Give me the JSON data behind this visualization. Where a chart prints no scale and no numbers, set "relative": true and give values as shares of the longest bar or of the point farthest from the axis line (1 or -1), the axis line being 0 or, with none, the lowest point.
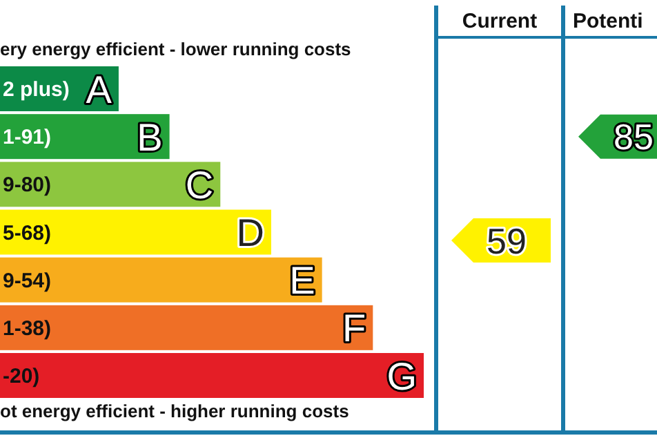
{
  "chart_data": {
    "type": "bar",
    "orientation": "horizontal",
    "relative": true,
    "title": "ery energy efficient - lower running costs",
    "categories": [
      "A",
      "B",
      "C",
      "D",
      "E",
      "F",
      "G"
    ],
    "values": [
      0.28,
      0.4,
      0.52,
      0.64,
      0.76,
      0.88,
      1
    ],
    "colors": [
      "#0c8a47",
      "#23a23a",
      "#8dc63f",
      "#fff200",
      "#f7ac1c",
      "#ef6f26",
      "#e41e26"
    ],
    "annotations": [
      "ot energy efficient - higher running costs",
      "Current",
      "Potenti",
      "2 plus)",
      "1-91)",
      "9-80)",
      "5-68)",
      "9-54)",
      "1-38)",
      "-20)",
      "59",
      "85"
    ]
  }
}
